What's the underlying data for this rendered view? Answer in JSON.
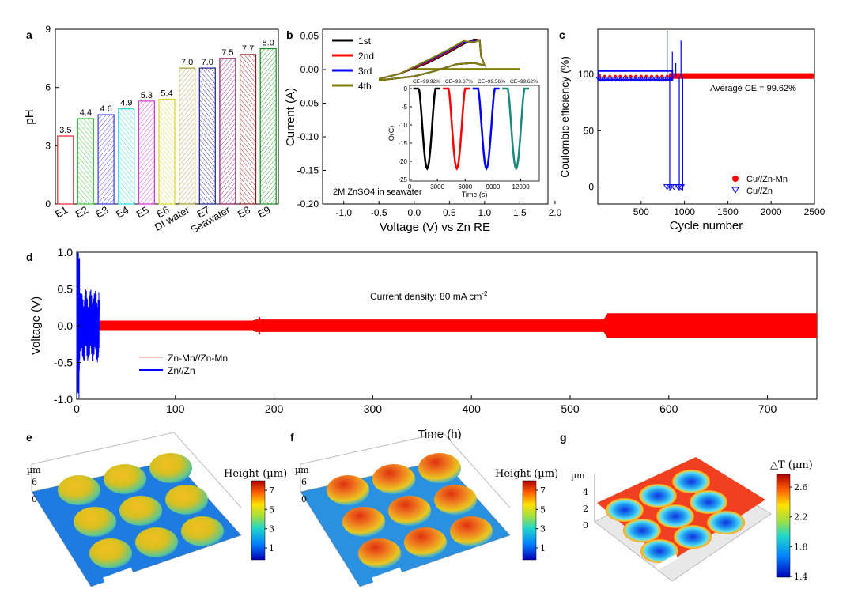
{
  "chart_data": [
    {
      "panel": "a",
      "type": "bar",
      "categories": [
        "E1",
        "E2",
        "E3",
        "E4",
        "E5",
        "E6",
        "DI water",
        "E7",
        "Seawater",
        "E8",
        "E9"
      ],
      "values": [
        3.5,
        4.4,
        4.6,
        4.9,
        5.3,
        5.4,
        7.0,
        7.0,
        7.5,
        7.7,
        8.0
      ],
      "value_labels": [
        "3.5",
        "4.4",
        "4.6",
        "4.9",
        "5.3",
        "5.4",
        "7.0",
        "7.0",
        "7.5",
        "7.7",
        "8.0"
      ],
      "colors": [
        "#e8202a",
        "#36c236",
        "#3a3ad8",
        "#27d6e0",
        "#d533d5",
        "#d8d62b",
        "#a89c34",
        "#1a1a8a",
        "#8b1a66",
        "#8b1a1a",
        "#1a8a1a"
      ],
      "ylabel": "pH",
      "ylim": [
        0,
        9
      ],
      "yticks": [
        "0",
        "3",
        "6",
        "9"
      ]
    },
    {
      "panel": "b",
      "type": "line",
      "xlabel": "Voltage (V) vs Zn RE",
      "ylabel": "Current (A)",
      "xlim": [
        -1.3,
        1.9
      ],
      "ylim": [
        -0.2,
        0.06
      ],
      "xticks": [
        "-1.0",
        "-0.5",
        "0.0",
        "0.5",
        "1.0",
        "1.5",
        "2.0"
      ],
      "yticks": [
        "0.05",
        "0.00",
        "-0.05",
        "-0.10",
        "-0.15",
        "-0.20"
      ],
      "series": [
        {
          "name": "1st",
          "color": "#000000"
        },
        {
          "name": "2nd",
          "color": "#ff0000"
        },
        {
          "name": "3rd",
          "color": "#0000ff"
        },
        {
          "name": "4th",
          "color": "#808000"
        }
      ],
      "annotation": "2M ZnSO4 in seawater",
      "inset": {
        "xlabel": "Time (s)",
        "ylabel": "Q(C)",
        "xticks": [
          "0",
          "3000",
          "6000",
          "9000",
          "12000"
        ],
        "yticks": [
          "0",
          "-5",
          "-10",
          "-15",
          "-20",
          "-25"
        ],
        "ce_labels": [
          "CE=99.92%",
          "CE=99.67%",
          "CE=99.56%",
          "CE=99.62%"
        ],
        "colors": [
          "#000000",
          "#ff0000",
          "#0000ff",
          "#1a8a7a"
        ],
        "minimum": -22
      }
    },
    {
      "panel": "c",
      "type": "scatter",
      "xlabel": "Cycle number",
      "ylabel": "Coulombic efficiency (%)",
      "xlim": [
        0,
        2500
      ],
      "ylim": [
        -15,
        140
      ],
      "xticks": [
        "500",
        "1000",
        "1500",
        "2000",
        "2500"
      ],
      "yticks": [
        "0",
        "50",
        "100"
      ],
      "series": [
        {
          "name": "Cu//Zn-Mn",
          "color": "#ff0000",
          "marker": "circle",
          "mean": 99.62
        },
        {
          "name": "Cu//Zn",
          "color": "#0000ff",
          "marker": "triangle-down"
        }
      ],
      "annotation": "Average CE = 99.62%"
    },
    {
      "panel": "d",
      "type": "line",
      "xlabel": "Time (h)",
      "ylabel": "Voltage (V)",
      "xlim": [
        0,
        750
      ],
      "ylim": [
        -1.0,
        1.0
      ],
      "xticks": [
        "0",
        "100",
        "200",
        "300",
        "400",
        "500",
        "600",
        "700"
      ],
      "yticks": [
        "1.0",
        "0.5",
        "0.0",
        "-0.5",
        "-1.0"
      ],
      "series": [
        {
          "name": "Zn-Mn//Zn-Mn",
          "color": "#ff0000"
        },
        {
          "name": "Zn//Zn",
          "color": "#0000ff"
        }
      ],
      "annotation": "Current density: 80 mA cm",
      "annotation_sup": "-2"
    },
    {
      "panel": "e",
      "type": "surface",
      "zlabel": "µm",
      "zticks": [
        "6",
        "0"
      ],
      "colorbar_title": "Height (µm)",
      "colorbar_ticks": [
        "7",
        "5",
        "3",
        "1"
      ]
    },
    {
      "panel": "f",
      "type": "surface",
      "zlabel": "µm",
      "zticks": [
        "6",
        "0"
      ],
      "colorbar_title": "Height (µm)",
      "colorbar_ticks": [
        "7",
        "5",
        "3",
        "1"
      ]
    },
    {
      "panel": "g",
      "type": "surface",
      "zlabel": "µm",
      "zticks": [
        "4",
        "2",
        "0"
      ],
      "colorbar_title": "△T (µm)",
      "colorbar_ticks": [
        "2.6",
        "2.2",
        "1.8",
        "1.4"
      ]
    }
  ]
}
